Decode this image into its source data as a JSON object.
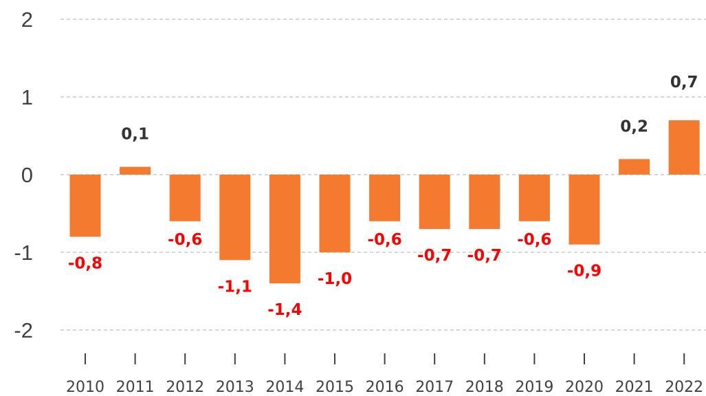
{
  "chart_data": {
    "type": "bar",
    "categories": [
      "2010",
      "2011",
      "2012",
      "2013",
      "2014",
      "2015",
      "2016",
      "2017",
      "2018",
      "2019",
      "2020",
      "2021",
      "2022"
    ],
    "values": [
      -0.8,
      0.1,
      -0.6,
      -1.1,
      -1.4,
      -1.0,
      -0.6,
      -0.7,
      -0.7,
      -0.6,
      -0.9,
      0.2,
      0.7
    ],
    "data_labels": [
      "-0,8",
      "0,1",
      "-0,6",
      "-1,1",
      "-1,4",
      "-1,0",
      "-0,6",
      "-0,7",
      "-0,7",
      "-0,6",
      "-0,9",
      "0,2",
      "0,7"
    ],
    "yticks": [
      "2",
      "1",
      "0",
      "-1",
      "-2"
    ],
    "ylim": [
      -2,
      2
    ],
    "grid": true,
    "colors": {
      "bar": "#f47a30",
      "negative_label": "#ff0000",
      "positive_label": "#333333"
    }
  }
}
